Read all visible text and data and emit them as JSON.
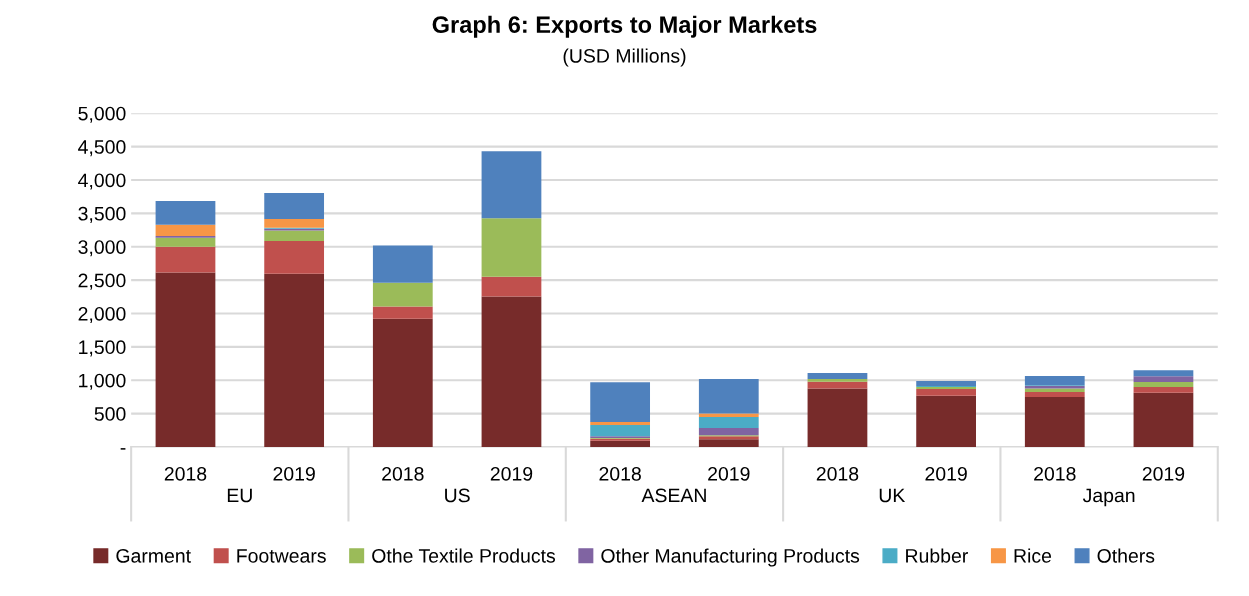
{
  "chart_data": {
    "type": "bar",
    "title": "Graph 6: Exports to Major Markets",
    "subtitle": "(USD Millions)",
    "categories": [
      "2018",
      "2019",
      "2018",
      "2019",
      "2018",
      "2019",
      "2018",
      "2019",
      "2018",
      "2019"
    ],
    "annotations": [
      "EU",
      "US",
      "ASEAN",
      "UK",
      "Japan"
    ],
    "stacked": true,
    "series": [
      {
        "name": "Garment",
        "color": "#772b2a",
        "values": [
          2615,
          2595,
          1920,
          2255,
          95,
          115,
          878,
          769,
          750,
          814
        ]
      },
      {
        "name": "Footwears",
        "color": "#c0504d",
        "values": [
          385,
          490,
          185,
          295,
          30,
          45,
          100,
          100,
          75,
          85
        ]
      },
      {
        "name": "Othe Textile Products",
        "color": "#9bbb59",
        "values": [
          135,
          160,
          355,
          875,
          10,
          15,
          40,
          30,
          50,
          75
        ]
      },
      {
        "name": "Other Manufacturing Products",
        "color": "#8064a2",
        "values": [
          25,
          25,
          0,
          0,
          25,
          110,
          0,
          0,
          40,
          85
        ]
      },
      {
        "name": "Rubber",
        "color": "#4bacc6",
        "values": [
          null,
          15,
          0,
          0,
          170,
          165,
          0,
          15,
          10,
          null
        ]
      },
      {
        "name": "Rice",
        "color": "#f79646",
        "values": [
          170,
          130,
          0,
          0,
          45,
          50,
          0,
          0,
          0,
          0
        ]
      },
      {
        "name": "Others",
        "color": "#4f81bd",
        "values": [
          355,
          390,
          560,
          1005,
          595,
          520,
          90,
          75,
          140,
          90
        ]
      }
    ],
    "ylim": [
      0,
      5000
    ],
    "yticks": [
      {
        "value": 0,
        "label": "-"
      },
      {
        "value": 500,
        "label": "500"
      },
      {
        "value": 1000,
        "label": "1,000"
      },
      {
        "value": 1500,
        "label": "1,500"
      },
      {
        "value": 2000,
        "label": "2,000"
      },
      {
        "value": 2500,
        "label": "2,500"
      },
      {
        "value": 3000,
        "label": "3,000"
      },
      {
        "value": 3500,
        "label": "3,500"
      },
      {
        "value": 4000,
        "label": "4,000"
      },
      {
        "value": 4500,
        "label": "4,500"
      },
      {
        "value": 5000,
        "label": "5,000"
      }
    ],
    "grid": "y",
    "legend": "bottom"
  }
}
